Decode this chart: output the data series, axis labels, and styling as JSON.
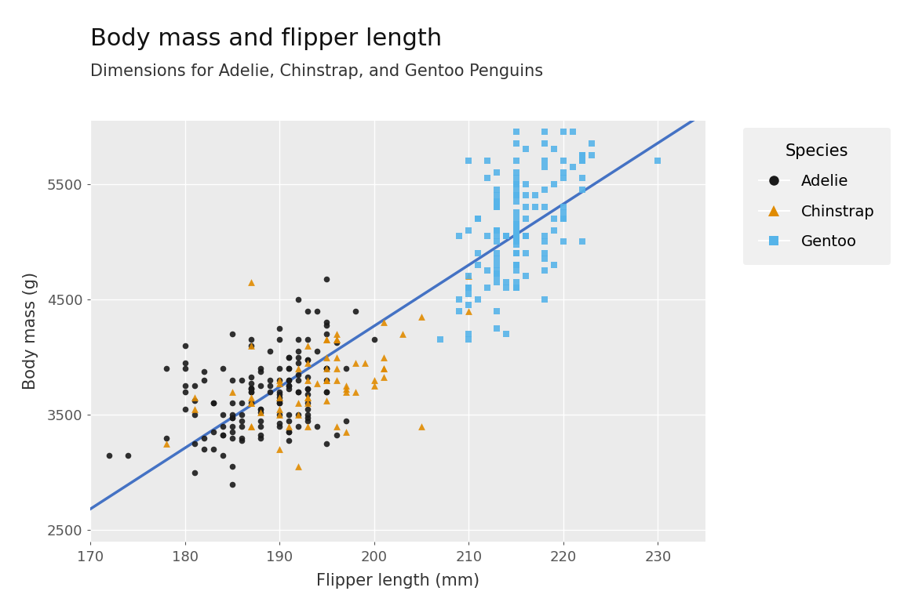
{
  "title": "Body mass and flipper length",
  "subtitle": "Dimensions for Adelie, Chinstrap, and Gentoo Penguins",
  "xlabel": "Flipper length (mm)",
  "ylabel": "Body mass (g)",
  "xlim": [
    170,
    235
  ],
  "ylim": [
    2400,
    6050
  ],
  "xticks": [
    170,
    180,
    190,
    200,
    210,
    220,
    230
  ],
  "yticks": [
    2500,
    3500,
    4500,
    5500
  ],
  "bg_color": "#EBEBEB",
  "grid_color": "#FFFFFF",
  "line_color": "#4472C4",
  "ci_color": "#BBBBBB",
  "adelie_color": "#1a1a1a",
  "chinstrap_color": "#E08B00",
  "gentoo_color": "#56B4E9",
  "title_fontsize": 22,
  "subtitle_fontsize": 15,
  "axis_label_fontsize": 15,
  "tick_fontsize": 13,
  "legend_fontsize": 14,
  "legend_title_fontsize": 15,
  "adelie_data": [
    [
      181,
      3750
    ],
    [
      186,
      3800
    ],
    [
      195,
      3250
    ],
    [
      193,
      3450
    ],
    [
      190,
      3650
    ],
    [
      181,
      3625
    ],
    [
      195,
      4675
    ],
    [
      193,
      3475
    ],
    [
      190,
      4250
    ],
    [
      186,
      3300
    ],
    [
      180,
      3700
    ],
    [
      182,
      3200
    ],
    [
      191,
      3800
    ],
    [
      198,
      4400
    ],
    [
      185,
      3300
    ],
    [
      195,
      3700
    ],
    [
      197,
      3450
    ],
    [
      184,
      3325
    ],
    [
      194,
      4400
    ],
    [
      174,
      3150
    ],
    [
      180,
      4100
    ],
    [
      189,
      4050
    ],
    [
      185,
      2900
    ],
    [
      180,
      3550
    ],
    [
      187,
      3700
    ],
    [
      183,
      3600
    ],
    [
      187,
      3733
    ],
    [
      172,
      3150
    ],
    [
      180,
      3900
    ],
    [
      178,
      3300
    ],
    [
      178,
      3900
    ],
    [
      188,
      3325
    ],
    [
      184,
      3150
    ],
    [
      195,
      3900
    ],
    [
      196,
      3325
    ],
    [
      190,
      4150
    ],
    [
      180,
      3950
    ],
    [
      181,
      3250
    ],
    [
      184,
      3900
    ],
    [
      182,
      3300
    ],
    [
      195,
      3900
    ],
    [
      191,
      3750
    ],
    [
      187,
      4150
    ],
    [
      193,
      3500
    ],
    [
      195,
      3800
    ],
    [
      197,
      3900
    ],
    [
      191,
      4000
    ],
    [
      193,
      3600
    ],
    [
      190,
      3800
    ],
    [
      186,
      3400
    ],
    [
      188,
      3750
    ],
    [
      192,
      4050
    ],
    [
      195,
      4300
    ],
    [
      190,
      3700
    ],
    [
      191,
      3350
    ],
    [
      186,
      3600
    ],
    [
      188,
      3900
    ],
    [
      190,
      3600
    ],
    [
      200,
      4150
    ],
    [
      187,
      3700
    ],
    [
      191,
      3800
    ],
    [
      193,
      4400
    ],
    [
      183,
      3350
    ],
    [
      187,
      4100
    ],
    [
      192,
      4500
    ],
    [
      183,
      3600
    ],
    [
      190,
      3900
    ],
    [
      193,
      4150
    ],
    [
      194,
      3400
    ],
    [
      185,
      3400
    ],
    [
      189,
      3750
    ],
    [
      185,
      3600
    ],
    [
      185,
      4200
    ],
    [
      192,
      4150
    ],
    [
      184,
      3400
    ],
    [
      190,
      3500
    ],
    [
      195,
      3700
    ],
    [
      191,
      3900
    ],
    [
      191,
      3750
    ],
    [
      187,
      3775
    ],
    [
      189,
      3800
    ],
    [
      187,
      3825
    ],
    [
      191,
      4000
    ],
    [
      195,
      4200
    ],
    [
      195,
      4275
    ],
    [
      196,
      4125
    ],
    [
      188,
      3550
    ],
    [
      191,
      3500
    ],
    [
      193,
      3675
    ],
    [
      193,
      3550
    ],
    [
      184,
      3325
    ],
    [
      186,
      3275
    ],
    [
      182,
      3875
    ],
    [
      192,
      3850
    ],
    [
      185,
      3350
    ],
    [
      192,
      3400
    ],
    [
      191,
      3350
    ],
    [
      191,
      3450
    ],
    [
      188,
      3875
    ],
    [
      193,
      3725
    ],
    [
      190,
      3625
    ],
    [
      191,
      3725
    ],
    [
      193,
      3825
    ],
    [
      185,
      3050
    ],
    [
      193,
      3725
    ],
    [
      186,
      3500
    ],
    [
      181,
      3000
    ],
    [
      190,
      3675
    ],
    [
      195,
      3900
    ],
    [
      181,
      3500
    ],
    [
      191,
      3900
    ],
    [
      187,
      3600
    ],
    [
      193,
      3975
    ],
    [
      185,
      3500
    ],
    [
      189,
      3700
    ],
    [
      187,
      3725
    ],
    [
      193,
      3975
    ],
    [
      190,
      3600
    ],
    [
      185,
      3475
    ],
    [
      186,
      3450
    ],
    [
      188,
      3550
    ],
    [
      192,
      3800
    ],
    [
      192,
      3500
    ],
    [
      182,
      3800
    ],
    [
      194,
      4050
    ],
    [
      187,
      3725
    ],
    [
      183,
      3200
    ],
    [
      188,
      3400
    ],
    [
      185,
      3800
    ],
    [
      180,
      3750
    ],
    [
      192,
      3700
    ],
    [
      188,
      3450
    ],
    [
      190,
      3400
    ],
    [
      188,
      3300
    ],
    [
      192,
      3700
    ],
    [
      185,
      3475
    ],
    [
      190,
      3425
    ],
    [
      184,
      3500
    ],
    [
      188,
      3525
    ],
    [
      192,
      3950
    ],
    [
      191,
      3275
    ],
    [
      192,
      4000
    ]
  ],
  "chinstrap_data": [
    [
      192,
      3500
    ],
    [
      196,
      3900
    ],
    [
      193,
      3650
    ],
    [
      188,
      3525
    ],
    [
      197,
      3725
    ],
    [
      198,
      3950
    ],
    [
      178,
      3250
    ],
    [
      197,
      3750
    ],
    [
      195,
      4150
    ],
    [
      198,
      3700
    ],
    [
      193,
      3800
    ],
    [
      194,
      3775
    ],
    [
      185,
      3700
    ],
    [
      201,
      3825
    ],
    [
      190,
      3775
    ],
    [
      201,
      4300
    ],
    [
      197,
      3350
    ],
    [
      181,
      3550
    ],
    [
      190,
      3800
    ],
    [
      195,
      3900
    ],
    [
      181,
      3650
    ],
    [
      192,
      3600
    ],
    [
      195,
      3625
    ],
    [
      190,
      3500
    ],
    [
      187,
      3400
    ],
    [
      193,
      3400
    ],
    [
      195,
      3800
    ],
    [
      197,
      3700
    ],
    [
      200,
      3750
    ],
    [
      200,
      3800
    ],
    [
      191,
      3400
    ],
    [
      205,
      3400
    ],
    [
      187,
      3600
    ],
    [
      201,
      4000
    ],
    [
      187,
      3600
    ],
    [
      203,
      4200
    ],
    [
      195,
      3800
    ],
    [
      199,
      3950
    ],
    [
      195,
      4000
    ],
    [
      210,
      4700
    ],
    [
      192,
      3900
    ],
    [
      205,
      4350
    ],
    [
      210,
      4400
    ],
    [
      187,
      3400
    ],
    [
      196,
      4150
    ],
    [
      196,
      3400
    ],
    [
      196,
      4000
    ],
    [
      201,
      3900
    ],
    [
      190,
      3550
    ],
    [
      187,
      4650
    ],
    [
      193,
      4100
    ],
    [
      193,
      3950
    ],
    [
      187,
      4100
    ],
    [
      192,
      3050
    ],
    [
      196,
      3800
    ],
    [
      193,
      3600
    ],
    [
      196,
      4200
    ],
    [
      195,
      4150
    ],
    [
      201,
      3900
    ],
    [
      190,
      3200
    ],
    [
      187,
      3650
    ],
    [
      193,
      3650
    ],
    [
      196,
      4150
    ],
    [
      190,
      3650
    ]
  ],
  "gentoo_data": [
    [
      211,
      4500
    ],
    [
      230,
      5700
    ],
    [
      210,
      4450
    ],
    [
      218,
      5700
    ],
    [
      215,
      5400
    ],
    [
      210,
      4550
    ],
    [
      211,
      4800
    ],
    [
      219,
      5200
    ],
    [
      209,
      4400
    ],
    [
      215,
      5150
    ],
    [
      214,
      4650
    ],
    [
      216,
      5400
    ],
    [
      214,
      4200
    ],
    [
      213,
      5050
    ],
    [
      210,
      4150
    ],
    [
      217,
      5300
    ],
    [
      213,
      4650
    ],
    [
      210,
      4700
    ],
    [
      218,
      5850
    ],
    [
      215,
      4650
    ],
    [
      210,
      4200
    ],
    [
      213,
      5600
    ],
    [
      216,
      4700
    ],
    [
      215,
      5050
    ],
    [
      210,
      4600
    ],
    [
      220,
      5550
    ],
    [
      222,
      5000
    ],
    [
      209,
      5050
    ],
    [
      207,
      4150
    ],
    [
      221,
      5650
    ],
    [
      211,
      5200
    ],
    [
      210,
      5100
    ],
    [
      219,
      5100
    ],
    [
      215,
      4800
    ],
    [
      213,
      5350
    ],
    [
      212,
      5700
    ],
    [
      222,
      5700
    ],
    [
      216,
      5050
    ],
    [
      210,
      5700
    ],
    [
      215,
      5600
    ],
    [
      218,
      4500
    ],
    [
      215,
      4900
    ],
    [
      213,
      4800
    ],
    [
      220,
      5700
    ],
    [
      219,
      5500
    ],
    [
      223,
      5850
    ],
    [
      218,
      5450
    ],
    [
      215,
      5700
    ],
    [
      220,
      5200
    ],
    [
      213,
      4725
    ],
    [
      215,
      5000
    ],
    [
      216,
      4900
    ],
    [
      215,
      5250
    ],
    [
      215,
      4800
    ],
    [
      210,
      4600
    ],
    [
      222,
      5450
    ],
    [
      212,
      4600
    ],
    [
      213,
      5300
    ],
    [
      216,
      5300
    ],
    [
      215,
      5100
    ],
    [
      220,
      5950
    ],
    [
      215,
      4800
    ],
    [
      218,
      4850
    ],
    [
      222,
      5750
    ],
    [
      211,
      5200
    ],
    [
      215,
      5350
    ],
    [
      213,
      4700
    ],
    [
      215,
      4900
    ],
    [
      215,
      4600
    ],
    [
      215,
      5200
    ],
    [
      214,
      5050
    ],
    [
      220,
      5250
    ],
    [
      213,
      5000
    ],
    [
      219,
      5800
    ],
    [
      217,
      5400
    ],
    [
      213,
      5100
    ],
    [
      215,
      5400
    ],
    [
      213,
      5300
    ],
    [
      215,
      4750
    ],
    [
      212,
      5550
    ],
    [
      211,
      4900
    ],
    [
      218,
      5300
    ],
    [
      218,
      5000
    ],
    [
      213,
      5100
    ],
    [
      216,
      5200
    ],
    [
      215,
      5000
    ],
    [
      221,
      5950
    ],
    [
      218,
      4900
    ],
    [
      213,
      5300
    ],
    [
      215,
      5550
    ],
    [
      223,
      5750
    ],
    [
      218,
      5050
    ],
    [
      218,
      5650
    ],
    [
      219,
      4800
    ],
    [
      210,
      4600
    ],
    [
      215,
      5050
    ],
    [
      220,
      5300
    ],
    [
      213,
      5400
    ],
    [
      212,
      4750
    ],
    [
      216,
      5050
    ],
    [
      215,
      5500
    ],
    [
      213,
      4250
    ],
    [
      222,
      5750
    ],
    [
      220,
      5000
    ],
    [
      215,
      5000
    ],
    [
      216,
      5500
    ],
    [
      215,
      5000
    ],
    [
      213,
      4900
    ],
    [
      215,
      5050
    ],
    [
      213,
      5450
    ],
    [
      215,
      5500
    ],
    [
      213,
      4750
    ],
    [
      218,
      5950
    ],
    [
      209,
      4500
    ],
    [
      222,
      5700
    ],
    [
      214,
      4600
    ],
    [
      220,
      5200
    ],
    [
      215,
      4975
    ],
    [
      215,
      4600
    ],
    [
      213,
      5300
    ],
    [
      214,
      5050
    ],
    [
      216,
      5800
    ],
    [
      212,
      5050
    ],
    [
      215,
      5850
    ],
    [
      222,
      5550
    ],
    [
      215,
      5150
    ],
    [
      213,
      4850
    ],
    [
      215,
      5050
    ],
    [
      213,
      4400
    ],
    [
      215,
      5450
    ],
    [
      220,
      5600
    ],
    [
      213,
      5350
    ],
    [
      215,
      5100
    ],
    [
      215,
      5000
    ],
    [
      213,
      5100
    ],
    [
      215,
      5950
    ],
    [
      218,
      4750
    ]
  ]
}
